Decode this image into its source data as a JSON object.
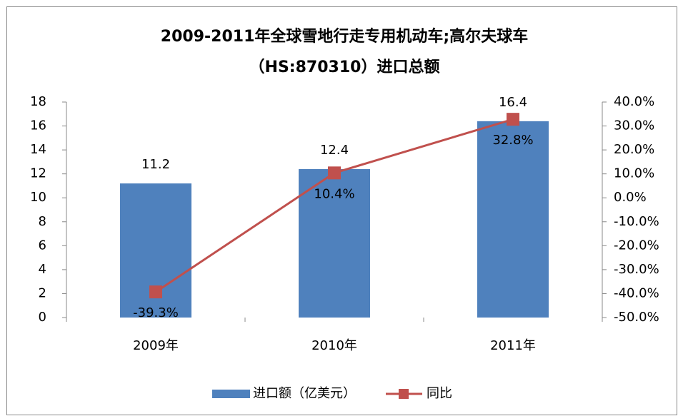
{
  "chart_data": {
    "type": "bar",
    "title": [
      "2009-2011年全球雪地行走专用机动车;高尔夫球车",
      "（HS:870310）进口总额"
    ],
    "categories": [
      "2009年",
      "2010年",
      "2011年"
    ],
    "series": [
      {
        "name": "进口额（亿美元）",
        "type": "bar",
        "color": "#4f81bd",
        "values": [
          11.2,
          12.4,
          16.4
        ]
      },
      {
        "name": "同比",
        "type": "line",
        "axis": "y2",
        "color": "#c0504d",
        "values": [
          -39.3,
          10.4,
          32.8
        ],
        "value_labels": [
          "-39.3%",
          "10.4%",
          "32.8%"
        ]
      }
    ],
    "ylim": [
      0,
      18
    ],
    "yticks": [
      0,
      2,
      4,
      6,
      8,
      10,
      12,
      14,
      16,
      18
    ],
    "y2lim": [
      -50,
      40
    ],
    "y2ticks": [
      {
        "value": -50,
        "label": "-50.0%"
      },
      {
        "value": -40,
        "label": "-40.0%"
      },
      {
        "value": -30,
        "label": "-30.0%"
      },
      {
        "value": -20,
        "label": "-20.0%"
      },
      {
        "value": -10,
        "label": "-10.0%"
      },
      {
        "value": 0,
        "label": "0.0%"
      },
      {
        "value": 10,
        "label": "10.0%"
      },
      {
        "value": 20,
        "label": "20.0%"
      },
      {
        "value": 30,
        "label": "30.0%"
      },
      {
        "value": 40,
        "label": "40.0%"
      }
    ],
    "legend": "bottom"
  }
}
